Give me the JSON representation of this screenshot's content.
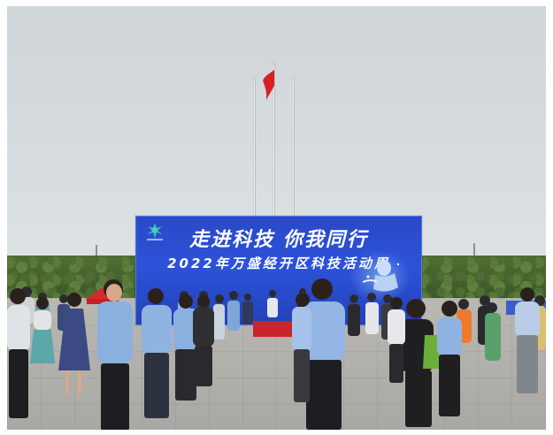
{
  "banner": {
    "title": "走进科技 你我同行",
    "subtitle": "2022年万盛经开区科技活动周"
  },
  "colors": {
    "banner_blue": "#2c52d9",
    "flag_red": "#d51f26",
    "sky": "#d9dee1",
    "hedge": "#4f6d33"
  },
  "icons": [
    "flag-icon",
    "logo-icon"
  ]
}
